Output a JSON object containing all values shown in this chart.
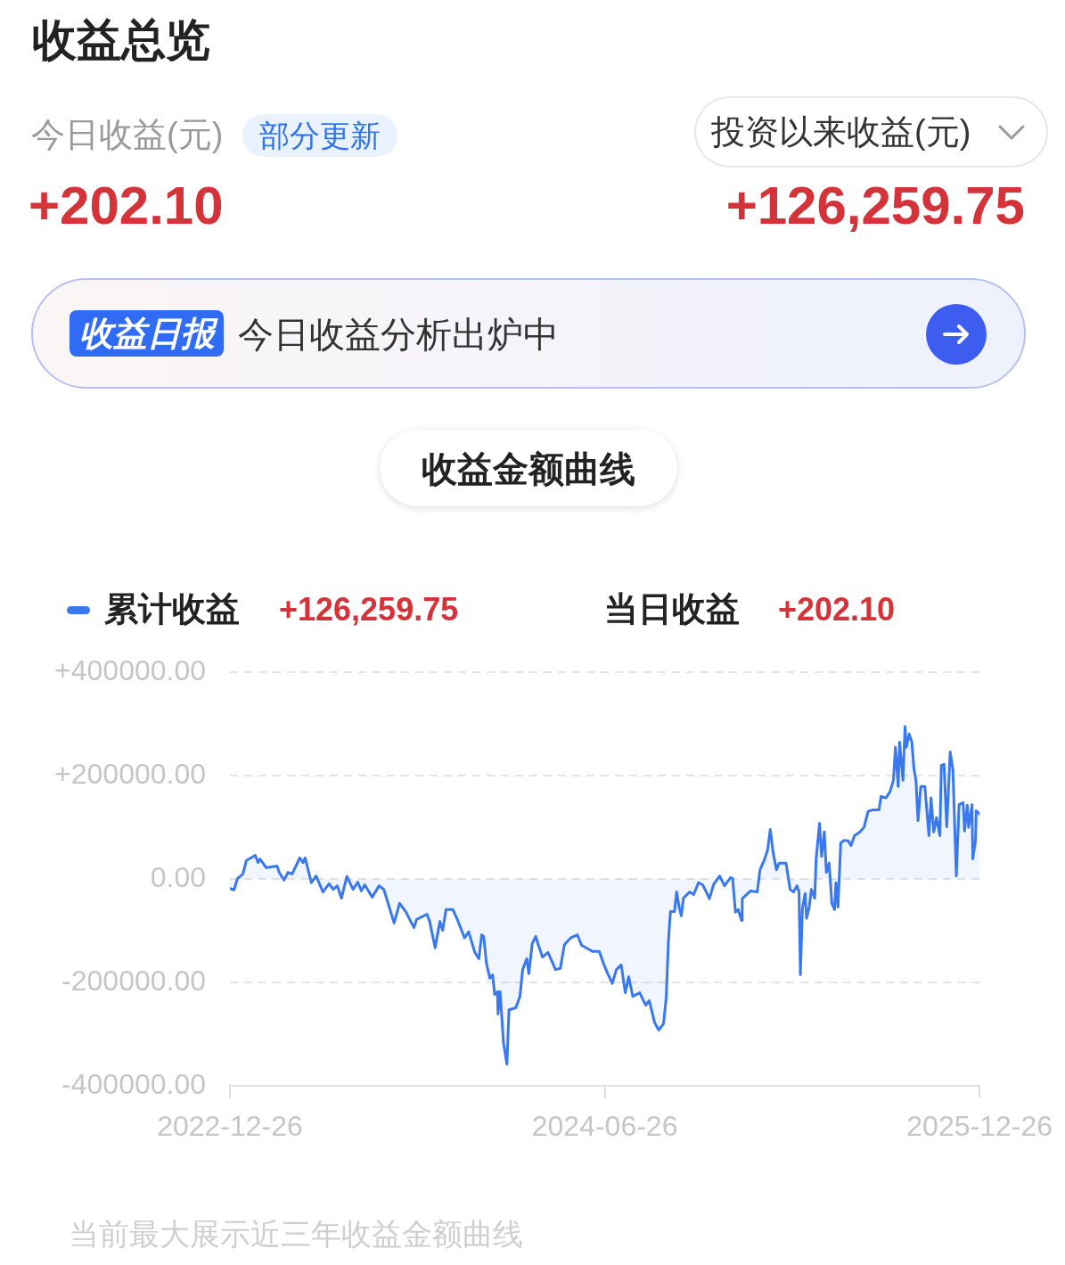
{
  "chart_data": {
    "type": "area",
    "title": "收益总览",
    "subtitle": "收益金额曲线",
    "annotations": [
      "今日收益(元)",
      "部分更新",
      "+202.10",
      "投资以来收益(元)",
      "+126,259.75",
      "收益日报",
      "今日收益分析出炉中",
      "+126,259.75",
      "当日收益",
      "+202.10",
      "当前最大展示近三年收益金额曲线"
    ],
    "x": [
      "2022-12-26",
      "2023-01-01",
      "2023-01-06",
      "2023-01-14",
      "2023-01-19",
      "2023-02-01",
      "2023-02-05",
      "2023-02-08",
      "2023-02-17",
      "2023-03-05",
      "2023-03-08",
      "2023-03-15",
      "2023-03-21",
      "2023-03-27",
      "2023-04-07",
      "2023-04-12",
      "2023-04-15",
      "2023-04-24",
      "2023-05-01",
      "2023-05-11",
      "2023-05-20",
      "2023-05-26",
      "2023-06-01",
      "2023-06-07",
      "2023-06-15",
      "2023-06-24",
      "2023-07-01",
      "2023-07-06",
      "2023-07-11",
      "2023-07-22",
      "2023-08-01",
      "2023-08-08",
      "2023-08-23",
      "2023-08-31",
      "2023-09-09",
      "2023-09-21",
      "2023-09-25",
      "2023-10-10",
      "2023-10-14",
      "2023-10-22",
      "2023-10-29",
      "2023-11-02",
      "2023-11-07",
      "2023-11-17",
      "2023-11-24",
      "2023-12-04",
      "2023-12-10",
      "2023-12-19",
      "2023-12-25",
      "2023-12-29",
      "2024-01-01",
      "2024-01-05",
      "2024-01-10",
      "2024-01-14",
      "2024-01-17",
      "2024-01-21",
      "2024-01-22",
      "2024-01-25",
      "2024-01-30",
      "2024-02-04",
      "2024-02-07",
      "2024-02-17",
      "2024-02-23",
      "2024-02-27",
      "2024-03-04",
      "2024-03-07",
      "2024-03-12",
      "2024-03-17",
      "2024-03-21",
      "2024-03-27",
      "2024-04-04",
      "2024-04-15",
      "2024-04-22",
      "2024-04-28",
      "2024-05-07",
      "2024-05-17",
      "2024-05-23",
      "2024-06-08",
      "2024-06-18",
      "2024-06-24",
      "2024-06-30",
      "2024-07-07",
      "2024-07-13",
      "2024-07-20",
      "2024-07-26",
      "2024-07-31",
      "2024-08-06",
      "2024-08-16",
      "2024-08-25",
      "2024-08-30",
      "2024-09-07",
      "2024-09-13",
      "2024-09-20",
      "2024-09-24",
      "2024-09-27",
      "2024-09-30",
      "2024-10-06",
      "2024-10-09",
      "2024-10-13",
      "2024-10-16",
      "2024-10-19",
      "2024-10-28",
      "2024-11-03",
      "2024-11-10",
      "2024-11-16",
      "2024-11-20",
      "2024-11-26",
      "2024-12-02",
      "2024-12-11",
      "2024-12-18",
      "2024-12-27",
      "2024-12-30",
      "2025-01-03",
      "2025-01-07",
      "2025-01-12",
      "2025-01-13",
      "2025-01-25",
      "2025-02-04",
      "2025-02-08",
      "2025-02-14",
      "2025-02-19",
      "2025-02-23",
      "2025-02-27",
      "2025-03-04",
      "2025-03-08",
      "2025-03-18",
      "2025-03-24",
      "2025-03-29",
      "2025-04-03",
      "2025-04-06",
      "2025-04-08",
      "2025-04-11",
      "2025-04-15",
      "2025-04-17",
      "2025-04-21",
      "2025-04-24",
      "2025-04-29",
      "2025-05-01",
      "2025-05-06",
      "2025-05-09",
      "2025-05-13",
      "2025-05-16",
      "2025-05-20",
      "2025-05-24",
      "2025-05-28",
      "2025-05-30",
      "2025-06-02",
      "2025-06-06",
      "2025-06-11",
      "2025-06-17",
      "2025-06-21",
      "2025-06-26",
      "2025-07-04",
      "2025-07-10",
      "2025-07-16",
      "2025-07-23",
      "2025-08-01",
      "2025-08-04",
      "2025-08-11",
      "2025-08-17",
      "2025-08-22",
      "2025-08-25",
      "2025-08-29",
      "2025-08-31",
      "2025-09-05",
      "2025-09-08",
      "2025-09-10",
      "2025-09-14",
      "2025-09-18",
      "2025-09-21",
      "2025-09-24",
      "2025-09-27",
      "2025-10-01",
      "2025-10-07",
      "2025-10-13",
      "2025-10-16",
      "2025-10-20",
      "2025-10-24",
      "2025-10-29",
      "2025-10-31",
      "2025-11-04",
      "2025-11-08",
      "2025-11-13",
      "2025-11-17",
      "2025-11-22",
      "2025-11-26",
      "2025-12-02",
      "2025-12-04",
      "2025-12-08",
      "2025-12-10",
      "2025-12-15",
      "2025-12-16",
      "2025-12-20",
      "2025-12-21",
      "2025-12-26"
    ],
    "series": [
      {
        "name": "累计收益",
        "color": "#3a78ee",
        "values": [
          -18000,
          -21000,
          1000,
          10000,
          36000,
          46000,
          32000,
          39000,
          22000,
          25000,
          13000,
          -2000,
          13000,
          10000,
          41000,
          32000,
          41000,
          -7000,
          6000,
          -25000,
          -9000,
          -20000,
          -13000,
          -37000,
          5000,
          -20000,
          -6000,
          -23000,
          -11000,
          -35000,
          -13000,
          -20000,
          -85000,
          -47000,
          -63000,
          -94000,
          -78000,
          -68000,
          -82000,
          -133000,
          -82000,
          -99000,
          -59000,
          -59000,
          -80000,
          -114000,
          -102000,
          -142000,
          -154000,
          -108000,
          -111000,
          -163000,
          -192000,
          -185000,
          -223000,
          -218000,
          -261000,
          -218000,
          -318000,
          -358000,
          -253000,
          -249000,
          -227000,
          -175000,
          -154000,
          -183000,
          -125000,
          -111000,
          -128000,
          -151000,
          -142000,
          -175000,
          -173000,
          -127000,
          -114000,
          -108000,
          -128000,
          -140000,
          -140000,
          -163000,
          -182000,
          -202000,
          -175000,
          -166000,
          -220000,
          -189000,
          -227000,
          -220000,
          -244000,
          -235000,
          -278000,
          -292000,
          -280000,
          -227000,
          -123000,
          -63000,
          -63000,
          -25000,
          -56000,
          -71000,
          -37000,
          -25000,
          -30000,
          -7000,
          -11000,
          -21000,
          -38000,
          -11000,
          6000,
          -13000,
          3000,
          1000,
          -64000,
          -59000,
          -80000,
          -38000,
          -23000,
          -25000,
          18000,
          36000,
          56000,
          96000,
          53000,
          18000,
          31000,
          31000,
          -20000,
          -25000,
          -13000,
          -25000,
          -185000,
          -56000,
          -28000,
          -76000,
          -54000,
          -20000,
          -37000,
          39000,
          108000,
          44000,
          91000,
          13000,
          31000,
          -47000,
          -59000,
          -7000,
          -54000,
          70000,
          75000,
          74000,
          65000,
          84000,
          91000,
          100000,
          131000,
          134000,
          134000,
          160000,
          157000,
          169000,
          191000,
          255000,
          179000,
          265000,
          191000,
          295000,
          255000,
          281000,
          265000,
          214000,
          191000,
          113000,
          179000,
          179000,
          84000,
          157000,
          91000,
          119000,
          84000,
          220000,
          222000,
          101000,
          246000,
          212000,
          6000,
          144000,
          148000,
          93000,
          143000,
          100000,
          144000,
          39000,
          74000,
          132000,
          126000
        ]
      }
    ],
    "xlim": [
      "2022-12-26",
      "2025-12-26"
    ],
    "xticks": [
      "2022-12-26",
      "2024-06-26",
      "2025-12-26"
    ],
    "ylim": [
      -400000,
      400000
    ],
    "yticks": [
      {
        "value": -400000,
        "label": "-400000.00"
      },
      {
        "value": -200000,
        "label": "-200000.00"
      },
      {
        "value": 0,
        "label": "0.00"
      },
      {
        "value": 200000,
        "label": "+200000.00"
      },
      {
        "value": 400000,
        "label": "+400000.00"
      }
    ],
    "grid": "y",
    "legend": "top left",
    "marker": "none",
    "line_style": "solid"
  }
}
